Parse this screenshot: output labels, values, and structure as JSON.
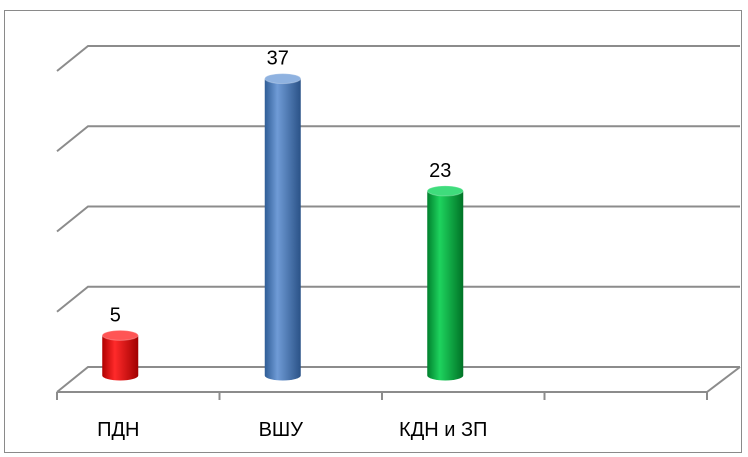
{
  "chart_data": {
    "type": "bar",
    "style": "3d-cylinder",
    "categories": [
      "ПДН",
      "ВШУ",
      "КДН и ЗП",
      ""
    ],
    "values": [
      5,
      37,
      23,
      null
    ],
    "data_labels": [
      "5",
      "37",
      "23",
      ""
    ],
    "colors": [
      "#ff0000",
      "#4f81bd",
      "#00b050",
      ""
    ],
    "ylim": [
      0,
      40
    ],
    "grid": true,
    "legend": "none",
    "title": "",
    "xlabel": "",
    "ylabel": ""
  }
}
